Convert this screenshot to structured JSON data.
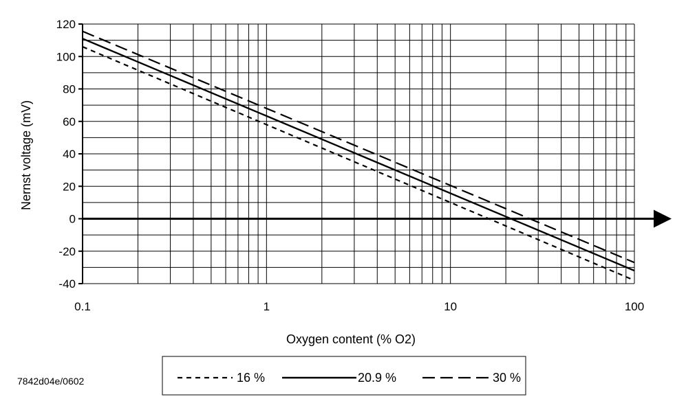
{
  "chart_data": {
    "type": "line",
    "title": "",
    "xlabel": "Oxygen content (% O2)",
    "ylabel": "Nernst voltage (mV)",
    "x_scale": "log",
    "xlim": [
      0.1,
      100
    ],
    "ylim": [
      -40,
      120
    ],
    "x_ticks": [
      0.1,
      1,
      10,
      100
    ],
    "x_tick_labels": [
      "0.1",
      "1",
      "10",
      "100"
    ],
    "y_ticks": [
      -40,
      -20,
      0,
      20,
      40,
      60,
      80,
      100,
      120
    ],
    "y_tick_labels": [
      "-40",
      "-20",
      "0",
      "20",
      "40",
      "60",
      "80",
      "100",
      "120"
    ],
    "grid": true,
    "legend_position": "bottom",
    "series": [
      {
        "name": "16 %",
        "style": "dotted",
        "x": [
          0.1,
          100
        ],
        "y": [
          106,
          -38
        ]
      },
      {
        "name": "20.9 %",
        "style": "solid",
        "x": [
          0.1,
          100
        ],
        "y": [
          111,
          -32
        ]
      },
      {
        "name": "30 %",
        "style": "dashed",
        "x": [
          0.1,
          100
        ],
        "y": [
          115.5,
          -27
        ]
      }
    ]
  },
  "footnote": "7842d04e/0602",
  "colors": {
    "line": "#000000",
    "grid": "#000000",
    "background": "#ffffff"
  }
}
